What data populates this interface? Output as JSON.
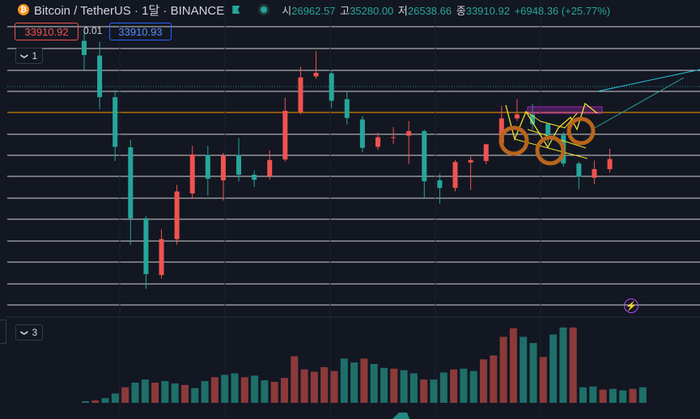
{
  "header": {
    "coin_glyph": "₿",
    "symbol_title": "Bitcoin / TetherUS · 1달 · BINANCE",
    "ohlc": {
      "open_label": "시",
      "open": "26962.57",
      "high_label": "고",
      "high": "35280.00",
      "low_label": "저",
      "low": "26538.66",
      "close_label": "종",
      "close": "33910.92",
      "change": "+6948.36 (+25.77%)"
    }
  },
  "trade": {
    "sell_price": "33910.92",
    "spread": "0.01",
    "buy_price": "33910.93"
  },
  "panes": {
    "price_pane_label": "1",
    "volume_pane_label": "3",
    "collapse_glyph": "❯"
  },
  "icons": {
    "bolt": "⚡"
  },
  "colors": {
    "background": "#131722",
    "up": "#26a69a",
    "down": "#ef5350",
    "volume_up": "#1e6f6a",
    "volume_down": "#8b3a3a",
    "horizontal_line": "#e8e8e8",
    "orange_line": "#ff9800",
    "drawing_yellow": "#f5e12a",
    "circle_orange": "#b8651b",
    "purple_box": "#9c27b0"
  },
  "chart_data": {
    "type": "candlestick",
    "candles": [
      [
        60.8,
        58.0,
        62.8,
        55.0
      ],
      [
        57.9,
        49.7,
        60.6,
        47.3
      ],
      [
        49.7,
        39.9,
        51.1,
        37.1
      ],
      [
        39.8,
        25.8,
        41.3,
        20.6
      ],
      [
        25.8,
        14.8,
        26.2,
        11.9
      ],
      [
        14.6,
        21.7,
        23.6,
        13.9
      ],
      [
        21.7,
        31.1,
        32.4,
        20.6
      ],
      [
        30.7,
        38.4,
        40.1,
        29.6
      ],
      [
        38.3,
        33.6,
        40.1,
        30.3
      ],
      [
        33.3,
        38.2,
        38.7,
        29.3
      ],
      [
        38.3,
        34.4,
        41.6,
        33.1
      ],
      [
        34.4,
        33.4,
        35.2,
        32.0
      ],
      [
        34.1,
        37.3,
        39.2,
        33.4
      ],
      [
        37.4,
        47.0,
        49.6,
        37.0
      ],
      [
        46.8,
        53.6,
        55.7,
        46.3
      ],
      [
        53.8,
        54.5,
        58.8,
        53.3
      ],
      [
        54.4,
        49.0,
        55.1,
        47.5
      ],
      [
        49.3,
        45.6,
        50.7,
        44.3
      ],
      [
        45.3,
        39.7,
        46.0,
        38.8
      ],
      [
        39.9,
        41.8,
        42.7,
        39.3
      ],
      [
        41.7,
        41.8,
        43.8,
        40.5
      ],
      [
        42.1,
        43.0,
        45.0,
        36.5
      ],
      [
        43.0,
        33.1,
        43.3,
        29.8
      ],
      [
        33.3,
        31.8,
        34.6,
        28.7
      ],
      [
        31.8,
        36.9,
        37.3,
        31.1
      ],
      [
        36.8,
        37.3,
        38.0,
        31.4
      ],
      [
        37.1,
        40.4,
        40.5,
        36.5
      ],
      [
        40.6,
        45.5,
        48.0,
        40.4
      ],
      [
        45.5,
        46.3,
        49.3,
        45.0
      ],
      [
        46.3,
        44.4,
        48.4,
        43.3
      ],
      [
        44.4,
        42.2,
        44.6,
        40.6
      ],
      [
        42.2,
        36.6,
        42.8,
        36.0
      ],
      [
        36.6,
        34.0,
        37.0,
        31.5
      ],
      [
        33.8,
        35.5,
        37.2,
        32.5
      ],
      [
        35.5,
        37.5,
        39.5,
        34.8
      ]
    ],
    "volume_pane": {
      "volumes": [
        0.2,
        0.3,
        0.6,
        1.2,
        2.0,
        2.6,
        3.0,
        2.6,
        2.8,
        2.5,
        2.3,
        1.9,
        2.8,
        3.3,
        3.6,
        3.8,
        3.3,
        3.5,
        2.9,
        2.7,
        3.2,
        6.0,
        4.3,
        4.0,
        4.6,
        4.1,
        5.7,
        5.2,
        5.7,
        5.0,
        4.5,
        4.4,
        4.2,
        3.8,
        3.0,
        3.0,
        3.9,
        4.3,
        4.4,
        4.1,
        5.6,
        6.1,
        8.5,
        9.6,
        8.5,
        7.7,
        5.9,
        8.8,
        9.7,
        9.7,
        2.0,
        2.1,
        1.7,
        1.8,
        1.6,
        1.8,
        2.0
      ]
    }
  }
}
